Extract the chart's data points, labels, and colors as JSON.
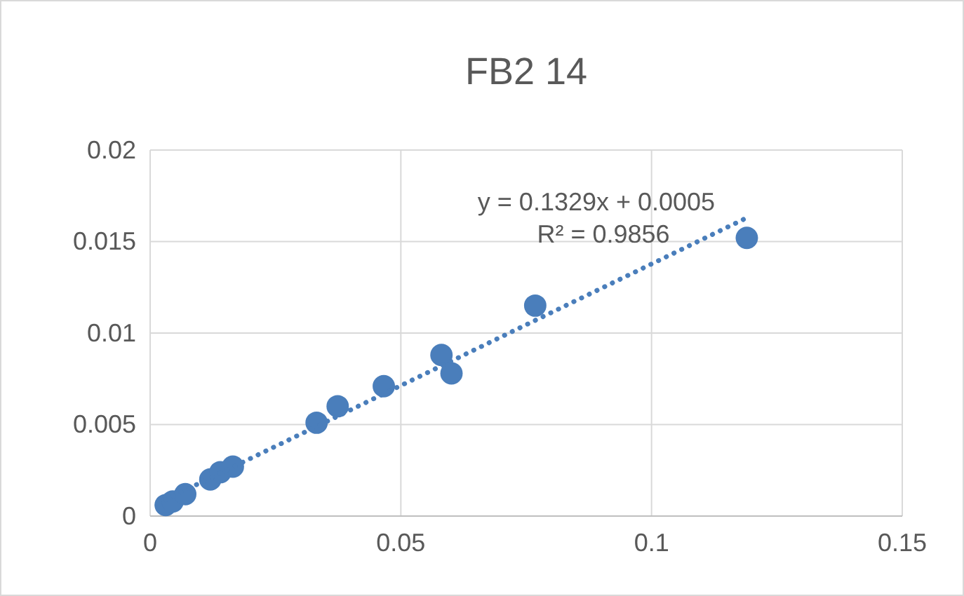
{
  "chart_data": {
    "type": "scatter",
    "title": "FB2 14",
    "x": [
      0.0031,
      0.0045,
      0.007,
      0.012,
      0.014,
      0.0165,
      0.0332,
      0.0374,
      0.0466,
      0.0581,
      0.0601,
      0.0768,
      0.119
    ],
    "series": [
      {
        "color": "#4a7ebb",
        "values": [
          0.0006,
          0.0008,
          0.0012,
          0.002,
          0.0024,
          0.0027,
          0.0051,
          0.006,
          0.0071,
          0.0088,
          0.0078,
          0.0115,
          0.0152
        ]
      },
      {
        "type": "line",
        "color": "#4a7ebb",
        "line_style": "dotted",
        "marker": "none",
        "x": [
          0.0031,
          0.119
        ],
        "values": [
          0.0009,
          0.0163
        ]
      }
    ],
    "annotations": [
      "y = 0.1329x + 0.0005",
      "R² = 0.9856"
    ],
    "marker": "circle",
    "grid": true,
    "xlim": [
      0,
      0.15
    ],
    "xticks": [
      0,
      0.05,
      0.1,
      0.15
    ],
    "ylim": [
      0,
      0.02
    ],
    "yticks": [
      0,
      0.005,
      0.01,
      0.015,
      0.02
    ]
  }
}
